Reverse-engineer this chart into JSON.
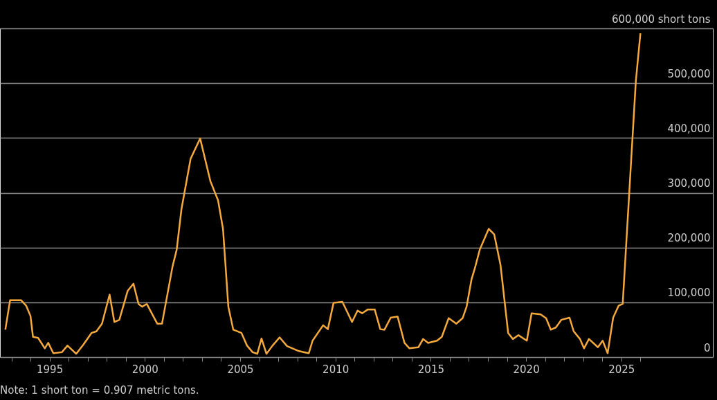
{
  "chart_data": {
    "type": "line",
    "x": [
      1992.68,
      1992.93,
      1993.5,
      1993.77,
      1994.0,
      1994.13,
      1994.4,
      1994.75,
      1994.93,
      1995.2,
      1995.65,
      1995.94,
      1996.4,
      1996.78,
      1997.2,
      1997.46,
      1997.75,
      1998.15,
      1998.4,
      1998.66,
      1999.1,
      1999.4,
      1999.67,
      1999.86,
      2000.1,
      2000.65,
      2000.9,
      2001.45,
      2001.67,
      2001.92,
      2002.4,
      2002.9,
      2003.44,
      2003.84,
      2004.1,
      2004.38,
      2004.64,
      2005.07,
      2005.36,
      2005.65,
      2005.9,
      2006.12,
      2006.38,
      2006.7,
      2007.07,
      2007.46,
      2008.08,
      2008.6,
      2008.8,
      2009.35,
      2009.6,
      2009.9,
      2010.36,
      2010.87,
      2011.16,
      2011.4,
      2011.7,
      2012.06,
      2012.35,
      2012.57,
      2012.9,
      2013.26,
      2013.62,
      2013.88,
      2014.35,
      2014.6,
      2014.86,
      2015.33,
      2015.58,
      2015.94,
      2016.34,
      2016.67,
      2016.88,
      2017.14,
      2017.32,
      2017.57,
      2018.04,
      2018.33,
      2018.66,
      2019.06,
      2019.31,
      2019.6,
      2020.04,
      2020.29,
      2020.76,
      2021.05,
      2021.3,
      2021.56,
      2021.85,
      2022.28,
      2022.5,
      2022.83,
      2023.04,
      2023.3,
      2023.77,
      2024.02,
      2024.28,
      2024.57,
      2024.86,
      2025.07,
      2025.76,
      2026.0
    ],
    "series": [
      {
        "color": "#f5a93c",
        "values": [
          50000,
          104000,
          104000,
          94000,
          75000,
          37000,
          35000,
          16000,
          26000,
          7000,
          9000,
          21000,
          6000,
          23000,
          44000,
          47000,
          61000,
          114000,
          64000,
          68000,
          121000,
          134000,
          97000,
          92000,
          97000,
          61000,
          61000,
          165000,
          196000,
          270000,
          362000,
          399000,
          321000,
          286000,
          234000,
          92000,
          50000,
          44000,
          21000,
          9000,
          6000,
          34000,
          6000,
          21000,
          36000,
          20000,
          11000,
          7000,
          30000,
          58000,
          51000,
          99000,
          101000,
          64000,
          85000,
          80000,
          87000,
          87000,
          51000,
          50000,
          72000,
          74000,
          26000,
          16000,
          18000,
          33000,
          26000,
          30000,
          37000,
          71000,
          61000,
          71000,
          92000,
          142000,
          163000,
          196000,
          234000,
          224000,
          168000,
          44000,
          33000,
          40000,
          30000,
          80000,
          78000,
          71000,
          50000,
          54000,
          68000,
          72000,
          47000,
          33000,
          16000,
          33000,
          18000,
          30000,
          7000,
          72000,
          94000,
          97000,
          504000,
          591000
        ]
      }
    ],
    "xlim": [
      1992.4,
      2029.8
    ],
    "xticks": [
      {
        "value": 1993,
        "label": null
      },
      {
        "value": 1994,
        "label": null
      },
      1995,
      {
        "value": 1996,
        "label": null
      },
      {
        "value": 1997,
        "label": null
      },
      {
        "value": 1998,
        "label": null
      },
      {
        "value": 1999,
        "label": null
      },
      2000,
      {
        "value": 2001,
        "label": null
      },
      {
        "value": 2002,
        "label": null
      },
      {
        "value": 2003,
        "label": null
      },
      {
        "value": 2004,
        "label": null
      },
      2005,
      {
        "value": 2006,
        "label": null
      },
      {
        "value": 2007,
        "label": null
      },
      {
        "value": 2008,
        "label": null
      },
      {
        "value": 2009,
        "label": null
      },
      2010,
      {
        "value": 2011,
        "label": null
      },
      {
        "value": 2012,
        "label": null
      },
      {
        "value": 2013,
        "label": null
      },
      {
        "value": 2014,
        "label": null
      },
      2015,
      {
        "value": 2016,
        "label": null
      },
      {
        "value": 2017,
        "label": null
      },
      {
        "value": 2018,
        "label": null
      },
      {
        "value": 2019,
        "label": null
      },
      2020,
      {
        "value": 2021,
        "label": null
      },
      {
        "value": 2022,
        "label": null
      },
      {
        "value": 2023,
        "label": null
      },
      {
        "value": 2024,
        "label": null
      },
      2025,
      {
        "value": 2026,
        "label": null
      }
    ],
    "ylim": [
      0,
      600000
    ],
    "yticks": [
      {
        "value": 0,
        "label": "0"
      },
      {
        "value": 100000,
        "label": "100,000"
      },
      {
        "value": 200000,
        "label": "200,000"
      },
      {
        "value": 300000,
        "label": "300,000"
      },
      {
        "value": 400000,
        "label": "400,000"
      },
      {
        "value": 500000,
        "label": "500,000"
      },
      {
        "value": 600000,
        "label": "600,000 short tons"
      }
    ],
    "grid": "y",
    "legend": false,
    "marker": "none",
    "line_style": "solid",
    "annotations": [
      "Note: 1 short ton = 0.907 metric tons."
    ]
  }
}
